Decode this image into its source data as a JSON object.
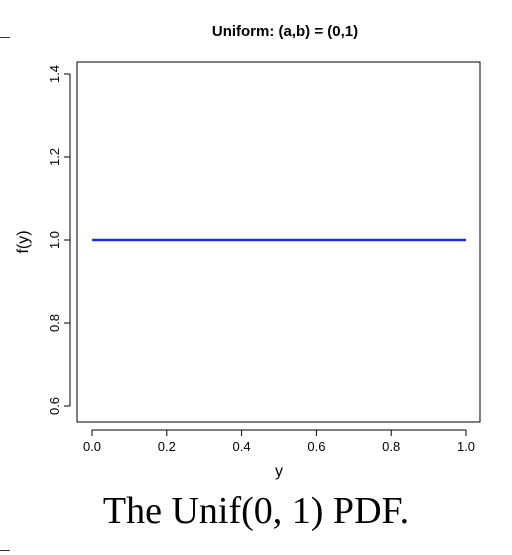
{
  "chart_data": {
    "type": "line",
    "title": "Uniform: (a,b) = (0,1)",
    "xlabel": "y",
    "ylabel": "f(y)",
    "xlim": [
      0.0,
      1.0
    ],
    "ylim": [
      0.6,
      1.4
    ],
    "x_ticks": [
      "0.0",
      "0.2",
      "0.4",
      "0.6",
      "0.8",
      "1.0"
    ],
    "y_ticks": [
      "0.6",
      "0.8",
      "1.0",
      "1.2",
      "1.4"
    ],
    "series": [
      {
        "x": [
          0.0,
          1.0
        ],
        "y": [
          1.0,
          1.0
        ],
        "color": "#1f2fd8"
      }
    ],
    "grid": false
  },
  "caption": "The Unif(0, 1) PDF."
}
